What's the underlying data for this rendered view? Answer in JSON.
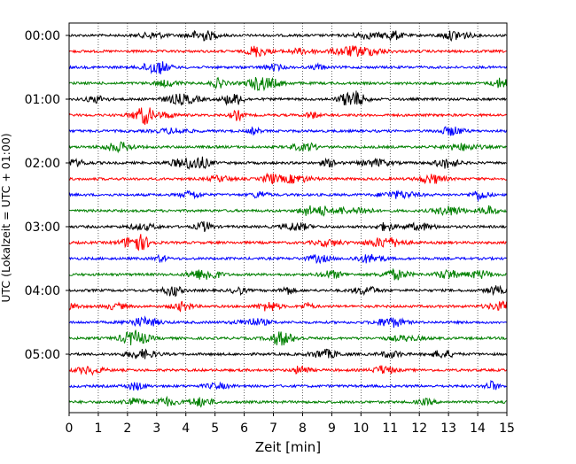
{
  "chart_data": {
    "type": "line",
    "title": "",
    "xlabel": "Zeit  [min]",
    "ylabel": "UTC (Lokalzeit = UTC + 01:00)",
    "xlim": [
      0,
      15
    ],
    "x_ticks": [
      "0",
      "1",
      "2",
      "3",
      "4",
      "5",
      "6",
      "7",
      "8",
      "9",
      "10",
      "11",
      "12",
      "13",
      "14",
      "15"
    ],
    "y_ticks": [
      "00:00",
      "01:00",
      "02:00",
      "03:00",
      "04:00",
      "05:00"
    ],
    "grid": "vertical dotted lines at each minute",
    "legend": "none",
    "trace_interval_min": 15,
    "trace_colors": [
      "#000000",
      "#ff0000",
      "#0000ff",
      "#008000"
    ],
    "series": [
      {
        "start": "00:00",
        "color": "#000000"
      },
      {
        "start": "00:15",
        "color": "#ff0000"
      },
      {
        "start": "00:30",
        "color": "#0000ff"
      },
      {
        "start": "00:45",
        "color": "#008000"
      },
      {
        "start": "01:00",
        "color": "#000000"
      },
      {
        "start": "01:15",
        "color": "#ff0000"
      },
      {
        "start": "01:30",
        "color": "#0000ff"
      },
      {
        "start": "01:45",
        "color": "#008000"
      },
      {
        "start": "02:00",
        "color": "#000000"
      },
      {
        "start": "02:15",
        "color": "#ff0000"
      },
      {
        "start": "02:30",
        "color": "#0000ff"
      },
      {
        "start": "02:45",
        "color": "#008000"
      },
      {
        "start": "03:00",
        "color": "#000000"
      },
      {
        "start": "03:15",
        "color": "#ff0000"
      },
      {
        "start": "03:30",
        "color": "#0000ff"
      },
      {
        "start": "03:45",
        "color": "#008000"
      },
      {
        "start": "04:00",
        "color": "#000000"
      },
      {
        "start": "04:15",
        "color": "#ff0000"
      },
      {
        "start": "04:30",
        "color": "#0000ff"
      },
      {
        "start": "04:45",
        "color": "#008000"
      },
      {
        "start": "05:00",
        "color": "#000000"
      },
      {
        "start": "05:15",
        "color": "#ff0000"
      },
      {
        "start": "05:30",
        "color": "#0000ff"
      },
      {
        "start": "05:45",
        "color": "#008000"
      }
    ]
  }
}
